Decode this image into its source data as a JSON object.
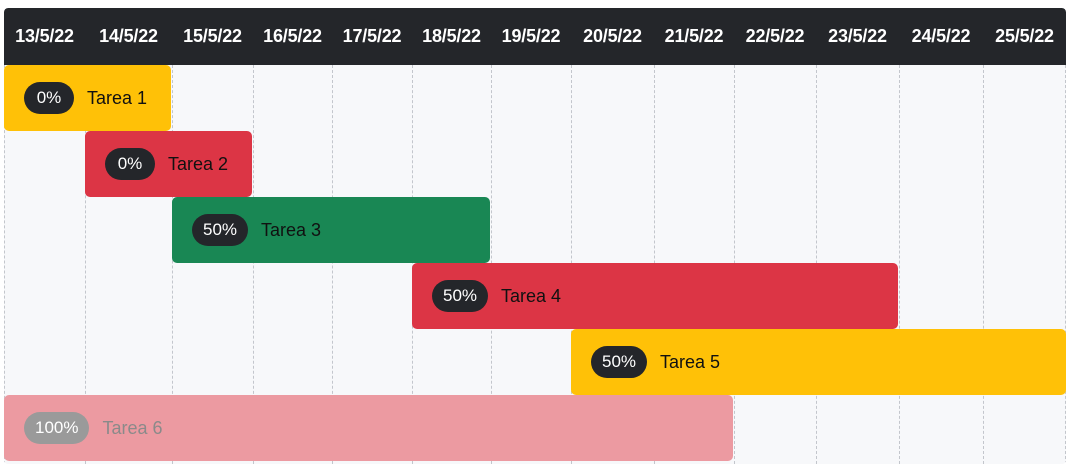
{
  "dates": [
    "13/5/22",
    "14/5/22",
    "15/5/22",
    "16/5/22",
    "17/5/22",
    "18/5/22",
    "19/5/22",
    "20/5/22",
    "21/5/22",
    "22/5/22",
    "23/5/22",
    "24/5/22",
    "25/5/22"
  ],
  "tasks": [
    {
      "name": "Tarea 1",
      "progress": "0%",
      "start": "13/5/22",
      "end": "14/5/22",
      "color": "#ffc107",
      "pill_color": "#24262a",
      "text_color": "#111111",
      "completed": false
    },
    {
      "name": "Tarea 2",
      "progress": "0%",
      "start": "14/5/22",
      "end": "15/5/22",
      "color": "#dc3545",
      "pill_color": "#24262a",
      "text_color": "#111111",
      "completed": false
    },
    {
      "name": "Tarea 3",
      "progress": "50%",
      "start": "15/5/22",
      "end": "18/5/22",
      "color": "#198754",
      "pill_color": "#24262a",
      "text_color": "#111111",
      "completed": false
    },
    {
      "name": "Tarea 4",
      "progress": "50%",
      "start": "18/5/22",
      "end": "23/5/22",
      "color": "#dc3545",
      "pill_color": "#24262a",
      "text_color": "#111111",
      "completed": false
    },
    {
      "name": "Tarea 5",
      "progress": "50%",
      "start": "20/5/22",
      "end": "25/5/22",
      "color": "#ffc107",
      "pill_color": "#24262a",
      "text_color": "#111111",
      "completed": false
    },
    {
      "name": "Tarea 6",
      "progress": "100%",
      "start": "13/5/22",
      "end": "21/5/22",
      "color": "#ec9aa1",
      "pill_color": "#9a9a9a",
      "text_color": "#8a8a8a",
      "completed": true
    }
  ]
}
